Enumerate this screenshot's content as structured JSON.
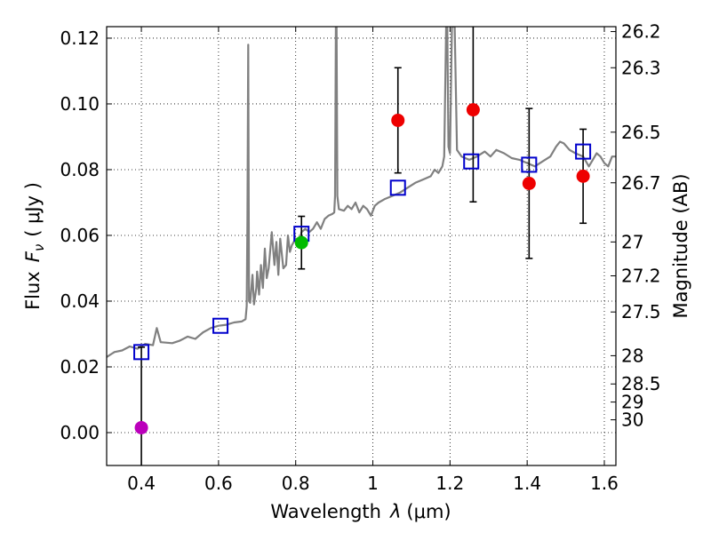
{
  "chart_data": {
    "type": "scatter",
    "title": "",
    "xlabel_text": "Wavelength",
    "xlabel_symbol": "λ",
    "xlabel_unit": "(μm)",
    "ylabel_text": "Flux",
    "ylabel_symbol": "F",
    "ylabel_subscript": "ν",
    "ylabel_unit": "( μJy )",
    "y2label": "Magnitude (AB)",
    "xlim": [
      0.31,
      1.63
    ],
    "ylim": [
      -0.01,
      0.1235
    ],
    "grid": true,
    "x_ticks": [
      {
        "value": 0.4,
        "label": "0.4"
      },
      {
        "value": 0.6,
        "label": "0.6"
      },
      {
        "value": 0.8,
        "label": "0.8"
      },
      {
        "value": 1.0,
        "label": "1"
      },
      {
        "value": 1.2,
        "label": "1.2"
      },
      {
        "value": 1.4,
        "label": "1.4"
      },
      {
        "value": 1.6,
        "label": "1.6"
      }
    ],
    "y_ticks": [
      {
        "value": 0.0,
        "label": "0.00"
      },
      {
        "value": 0.02,
        "label": "0.02"
      },
      {
        "value": 0.04,
        "label": "0.04"
      },
      {
        "value": 0.06,
        "label": "0.06"
      },
      {
        "value": 0.08,
        "label": "0.08"
      },
      {
        "value": 0.1,
        "label": "0.10"
      },
      {
        "value": 0.12,
        "label": "0.12"
      }
    ],
    "mag_ticks": [
      {
        "flux": 0.122,
        "label": "26.2"
      },
      {
        "flux": 0.111,
        "label": "26.3"
      },
      {
        "flux": 0.0914,
        "label": "26.5"
      },
      {
        "flux": 0.076,
        "label": "26.7"
      },
      {
        "flux": 0.058,
        "label": "27"
      },
      {
        "flux": 0.0477,
        "label": "27.2"
      },
      {
        "flux": 0.0367,
        "label": "27.5"
      },
      {
        "flux": 0.0234,
        "label": "28"
      },
      {
        "flux": 0.0148,
        "label": "28.5"
      },
      {
        "flux": 0.0093,
        "label": "29"
      },
      {
        "flux": 0.0039,
        "label": "30"
      }
    ],
    "model_spectrum": {
      "name": "model SED",
      "color": "#808080",
      "points": [
        [
          0.31,
          0.023
        ],
        [
          0.33,
          0.0245
        ],
        [
          0.35,
          0.025
        ],
        [
          0.37,
          0.0262
        ],
        [
          0.39,
          0.0255
        ],
        [
          0.41,
          0.027
        ],
        [
          0.43,
          0.0266
        ],
        [
          0.44,
          0.0318
        ],
        [
          0.45,
          0.0275
        ],
        [
          0.48,
          0.0272
        ],
        [
          0.5,
          0.028
        ],
        [
          0.52,
          0.0292
        ],
        [
          0.54,
          0.0285
        ],
        [
          0.56,
          0.0305
        ],
        [
          0.58,
          0.0318
        ],
        [
          0.6,
          0.0325
        ],
        [
          0.62,
          0.0328
        ],
        [
          0.64,
          0.0335
        ],
        [
          0.66,
          0.0338
        ],
        [
          0.67,
          0.0345
        ],
        [
          0.673,
          0.0385
        ],
        [
          0.675,
          0.065
        ],
        [
          0.677,
          0.118
        ],
        [
          0.679,
          0.04
        ],
        [
          0.682,
          0.0395
        ],
        [
          0.688,
          0.048
        ],
        [
          0.692,
          0.039
        ],
        [
          0.698,
          0.044
        ],
        [
          0.7,
          0.049
        ],
        [
          0.705,
          0.042
        ],
        [
          0.71,
          0.051
        ],
        [
          0.715,
          0.044
        ],
        [
          0.72,
          0.056
        ],
        [
          0.725,
          0.047
        ],
        [
          0.73,
          0.05
        ],
        [
          0.738,
          0.061
        ],
        [
          0.745,
          0.051
        ],
        [
          0.75,
          0.058
        ],
        [
          0.755,
          0.048
        ],
        [
          0.76,
          0.059
        ],
        [
          0.768,
          0.05
        ],
        [
          0.775,
          0.051
        ],
        [
          0.78,
          0.06
        ],
        [
          0.785,
          0.055
        ],
        [
          0.79,
          0.057
        ],
        [
          0.8,
          0.059
        ],
        [
          0.81,
          0.058
        ],
        [
          0.815,
          0.061
        ],
        [
          0.825,
          0.062
        ],
        [
          0.835,
          0.061
        ],
        [
          0.845,
          0.062
        ],
        [
          0.855,
          0.064
        ],
        [
          0.865,
          0.062
        ],
        [
          0.875,
          0.065
        ],
        [
          0.885,
          0.066
        ],
        [
          0.895,
          0.0665
        ],
        [
          0.9,
          0.067
        ],
        [
          0.902,
          0.072
        ],
        [
          0.904,
          0.1235
        ],
        [
          0.906,
          0.1235
        ],
        [
          0.908,
          0.072
        ],
        [
          0.912,
          0.068
        ],
        [
          0.925,
          0.0675
        ],
        [
          0.935,
          0.069
        ],
        [
          0.945,
          0.068
        ],
        [
          0.955,
          0.07
        ],
        [
          0.965,
          0.067
        ],
        [
          0.975,
          0.069
        ],
        [
          0.985,
          0.068
        ],
        [
          0.995,
          0.066
        ],
        [
          1.005,
          0.069
        ],
        [
          1.015,
          0.07
        ],
        [
          1.03,
          0.071
        ],
        [
          1.05,
          0.072
        ],
        [
          1.07,
          0.073
        ],
        [
          1.09,
          0.0745
        ],
        [
          1.11,
          0.076
        ],
        [
          1.13,
          0.077
        ],
        [
          1.15,
          0.078
        ],
        [
          1.16,
          0.08
        ],
        [
          1.17,
          0.079
        ],
        [
          1.18,
          0.081
        ],
        [
          1.185,
          0.084
        ],
        [
          1.19,
          0.1235
        ],
        [
          1.193,
          0.1235
        ],
        [
          1.196,
          0.087
        ],
        [
          1.2,
          0.085
        ],
        [
          1.205,
          0.1235
        ],
        [
          1.212,
          0.1235
        ],
        [
          1.218,
          0.086
        ],
        [
          1.23,
          0.084
        ],
        [
          1.25,
          0.083
        ],
        [
          1.27,
          0.084
        ],
        [
          1.29,
          0.0855
        ],
        [
          1.305,
          0.084
        ],
        [
          1.32,
          0.086
        ],
        [
          1.34,
          0.085
        ],
        [
          1.36,
          0.0835
        ],
        [
          1.38,
          0.083
        ],
        [
          1.4,
          0.082
        ],
        [
          1.42,
          0.081
        ],
        [
          1.44,
          0.0825
        ],
        [
          1.46,
          0.084
        ],
        [
          1.475,
          0.087
        ],
        [
          1.485,
          0.0885
        ],
        [
          1.495,
          0.088
        ],
        [
          1.51,
          0.086
        ],
        [
          1.525,
          0.085
        ],
        [
          1.545,
          0.084
        ],
        [
          1.56,
          0.081
        ],
        [
          1.57,
          0.083
        ],
        [
          1.58,
          0.085
        ],
        [
          1.59,
          0.084
        ],
        [
          1.6,
          0.082
        ],
        [
          1.61,
          0.081
        ],
        [
          1.62,
          0.084
        ],
        [
          1.63,
          0.084
        ]
      ]
    },
    "model_photometry": {
      "name": "model band fluxes",
      "marker": "open-square",
      "color": "#0000cc",
      "points": [
        [
          0.4,
          0.0245
        ],
        [
          0.605,
          0.0325
        ],
        [
          0.815,
          0.0605
        ],
        [
          1.065,
          0.0745
        ],
        [
          1.255,
          0.0825
        ],
        [
          1.405,
          0.0815
        ],
        [
          1.545,
          0.0855
        ]
      ]
    },
    "observed": {
      "name": "observed photometry",
      "points": [
        {
          "x": 0.4,
          "y": 0.0015,
          "err": 0.0245,
          "color": "#bb00bb"
        },
        {
          "x": 0.815,
          "y": 0.0578,
          "err": 0.008,
          "color": "#00bb00"
        },
        {
          "x": 1.065,
          "y": 0.095,
          "err": 0.016,
          "color": "#ee0000"
        },
        {
          "x": 1.26,
          "y": 0.0982,
          "err": 0.028,
          "color": "#ee0000"
        },
        {
          "x": 1.405,
          "y": 0.0758,
          "err": 0.0228,
          "color": "#ee0000"
        },
        {
          "x": 1.545,
          "y": 0.078,
          "err": 0.0143,
          "color": "#ee0000"
        }
      ]
    }
  }
}
